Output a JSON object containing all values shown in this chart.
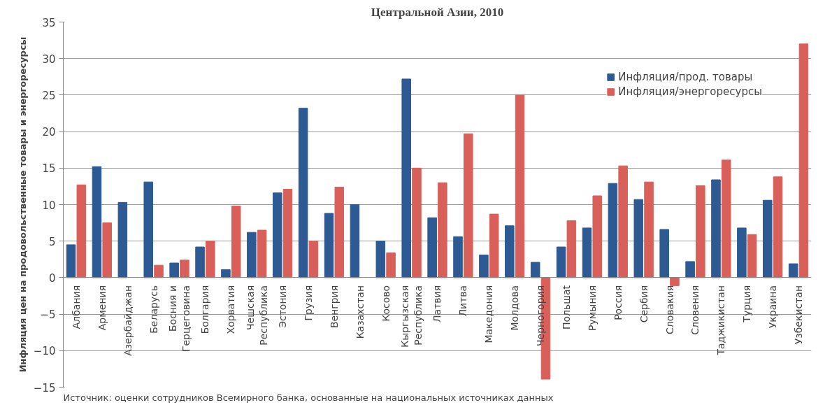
{
  "chart_data": {
    "type": "bar",
    "title": "Центральной Азии, 2010",
    "ylabel": "Инфляция цен на продовольственные товары и энергоресурсы",
    "annotations": [
      "Источник: оценки сотрудников Всемирного банка, основанные на национальных источниках данных"
    ],
    "categories": [
      "Албания",
      "Армения",
      "Азербайджан",
      "Беларусь",
      "Босния и\nГерцеговина",
      "Болгария",
      "Хорватия",
      "Чешская\nРеспублика",
      "Эстония",
      "Грузия",
      "Венгрия",
      "Казахстан",
      "Косово",
      "Кыргызская\nРеспублика",
      "Латвия",
      "Литва",
      "Македония",
      "Молдова",
      "Черногория",
      "Польшаt",
      "Румыния",
      "Россия",
      "Сербия",
      "Словакия",
      "Словения",
      "Таджикистан",
      "Турция",
      "Украина",
      "Узбекистан"
    ],
    "series": [
      {
        "name": "Инфляция/прод. товары",
        "color": "#2e5a93",
        "values": [
          4.5,
          15.2,
          10.3,
          13.1,
          2.0,
          4.2,
          1.1,
          6.2,
          11.6,
          23.2,
          8.8,
          10.0,
          5.0,
          27.2,
          8.2,
          5.6,
          3.1,
          7.1,
          2.1,
          4.2,
          6.8,
          12.9,
          10.7,
          6.6,
          2.2,
          13.4,
          6.8,
          10.6,
          1.9
        ]
      },
      {
        "name": "Инфляция/энергоресурсы",
        "color": "#d9605a",
        "values": [
          12.7,
          7.5,
          null,
          1.7,
          2.4,
          5.0,
          9.8,
          6.5,
          12.1,
          5.0,
          12.4,
          null,
          3.4,
          15.0,
          13.0,
          19.7,
          8.7,
          25.0,
          -13.9,
          7.8,
          11.2,
          15.3,
          13.1,
          -1.1,
          12.6,
          16.1,
          5.9,
          13.8,
          32.0
        ]
      }
    ],
    "ylim": [
      -15,
      35
    ],
    "yticks": [
      -15,
      -10,
      -5,
      0,
      5,
      10,
      15,
      20,
      25,
      30,
      35
    ],
    "grid": "y",
    "legend": "top right"
  }
}
